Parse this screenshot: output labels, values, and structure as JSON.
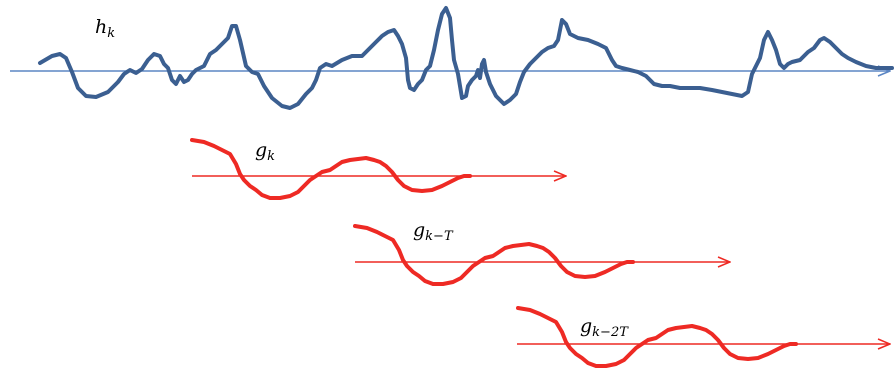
{
  "colors": {
    "signal": "#3b5f91",
    "signal_axis": "#5b86c4",
    "kernel": "#ee2a24",
    "kernel_axis": "#ee2a24",
    "background": "#ffffff"
  },
  "labels": {
    "signal": {
      "base": "h",
      "sub": "k"
    },
    "kernel_0": {
      "base": "g",
      "sub": "k"
    },
    "kernel_1": {
      "base": "g",
      "sub": "k−T"
    },
    "kernel_2": {
      "base": "g",
      "sub": "k−2T"
    }
  }
}
